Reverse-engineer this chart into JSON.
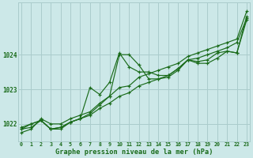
{
  "title": "Graphe pression niveau de la mer (hPa)",
  "background_color": "#cce8e8",
  "grid_color": "#aacccc",
  "line_color": "#1a6b1a",
  "x_ticks": [
    0,
    1,
    2,
    3,
    4,
    5,
    6,
    7,
    8,
    9,
    10,
    11,
    12,
    13,
    14,
    15,
    16,
    17,
    18,
    19,
    20,
    21,
    22,
    23
  ],
  "x_tick_labels": [
    "0",
    "1",
    "2",
    "3",
    "4",
    "5",
    "6",
    "7",
    "8",
    "9",
    "10",
    "11",
    "12",
    "13",
    "14",
    "15",
    "16",
    "17",
    "18",
    "19",
    "20",
    "21",
    "22",
    "23"
  ],
  "ylim": [
    1021.5,
    1025.5
  ],
  "yticks": [
    1022,
    1023,
    1024
  ],
  "series": [
    [
      1021.85,
      1021.9,
      1022.1,
      1021.85,
      1021.85,
      1022.05,
      1022.15,
      1022.25,
      1022.45,
      1022.6,
      1022.8,
      1022.9,
      1023.1,
      1023.2,
      1023.3,
      1023.4,
      1023.6,
      1023.85,
      1023.9,
      1024.0,
      1024.1,
      1024.2,
      1024.35,
      1025.05
    ],
    [
      1021.9,
      1022.0,
      1022.1,
      1021.85,
      1021.9,
      1022.05,
      1022.15,
      1022.3,
      1022.55,
      1022.8,
      1024.0,
      1024.0,
      1023.7,
      1023.3,
      1023.3,
      1023.35,
      1023.55,
      1023.85,
      1023.8,
      1023.85,
      1024.05,
      1024.1,
      1024.05,
      1025.1
    ],
    [
      1021.85,
      1022.0,
      1022.1,
      1021.85,
      1021.9,
      1022.05,
      1022.15,
      1023.05,
      1022.85,
      1023.2,
      1024.05,
      1023.65,
      1023.5,
      1023.5,
      1023.4,
      1023.4,
      1023.6,
      1023.85,
      1023.75,
      1023.75,
      1023.9,
      1024.1,
      1024.05,
      1025.0
    ],
    [
      1021.75,
      1021.85,
      1022.15,
      1022.0,
      1022.0,
      1022.15,
      1022.25,
      1022.35,
      1022.6,
      1022.8,
      1023.05,
      1023.1,
      1023.35,
      1023.45,
      1023.55,
      1023.65,
      1023.75,
      1023.95,
      1024.05,
      1024.15,
      1024.25,
      1024.35,
      1024.45,
      1025.25
    ]
  ]
}
